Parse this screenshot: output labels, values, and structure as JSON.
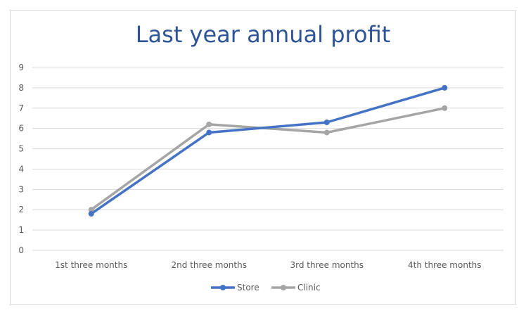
{
  "chart_data": {
    "type": "line",
    "title": "Last year annual profit",
    "categories": [
      "1st three months",
      "2nd three months",
      "3rd three months",
      "4th three months"
    ],
    "series": [
      {
        "name": "Store",
        "values": [
          1.8,
          5.8,
          6.3,
          8.0
        ],
        "color": "#4472c4"
      },
      {
        "name": "Clinic",
        "values": [
          2.0,
          6.2,
          5.8,
          7.0
        ],
        "color": "#a5a5a5"
      }
    ],
    "ylim": [
      0,
      9
    ],
    "yticks": [
      0,
      1,
      2,
      3,
      4,
      5,
      6,
      7,
      8,
      9
    ],
    "grid": true,
    "legend_position": "bottom",
    "xlabel": "",
    "ylabel": ""
  }
}
